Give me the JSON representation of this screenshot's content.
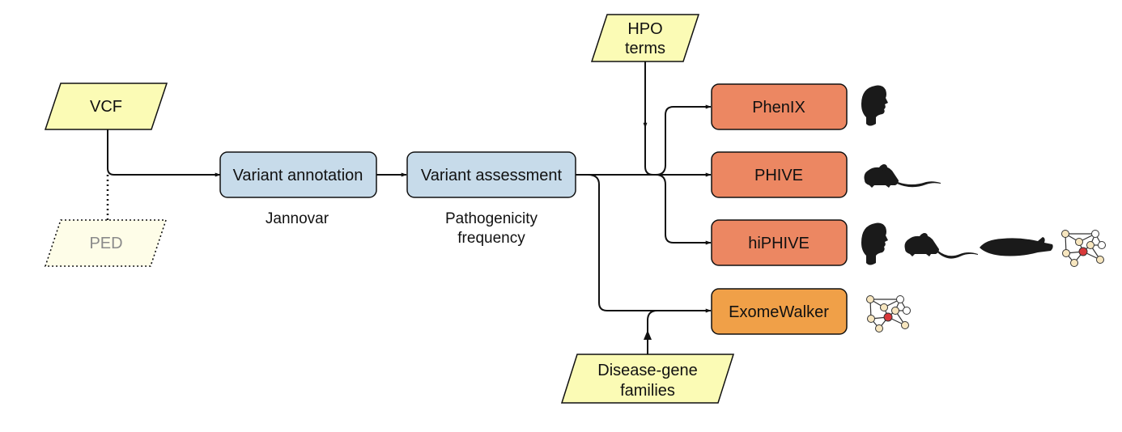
{
  "inputs": {
    "vcf": "VCF",
    "ped": "PED",
    "hpo_line1": "HPO",
    "hpo_line2": "terms",
    "disease_line1": "Disease-gene",
    "disease_line2": "families"
  },
  "steps": {
    "annotation": "Variant annotation",
    "annotation_tool": "Jannovar",
    "assessment": "Variant assessment",
    "assessment_line1": "Pathogenicity",
    "assessment_line2": "frequency"
  },
  "methods": {
    "phenix": "PhenIX",
    "phive": "PHIVE",
    "hiphive": "hiPHIVE",
    "exomewalker": "ExomeWalker"
  },
  "icons": {
    "phenix": [
      "human-head-icon"
    ],
    "phive": [
      "mouse-icon"
    ],
    "hiphive": [
      "human-head-icon",
      "mouse-icon",
      "fish-icon",
      "network-icon"
    ],
    "exomewalker": [
      "network-icon"
    ]
  },
  "colors": {
    "input_fill": "#fbfbb5",
    "ped_fill": "#fefde8",
    "step_fill": "#c7dbea",
    "method_fill": "#ec8762",
    "exomewalker_fill": "#f0a048",
    "network_node_fill": "#f7e6bf",
    "network_center_fill": "#d8383a"
  }
}
